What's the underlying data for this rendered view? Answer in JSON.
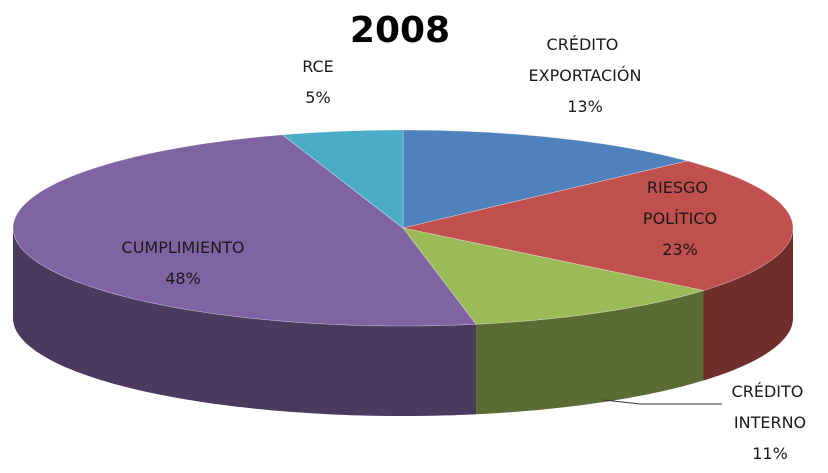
{
  "chart_data": {
    "type": "pie3d",
    "title": "2008",
    "categories": [
      "CRÉDITO EXPORTACIÓN",
      "RIESGO POLÍTICO",
      "CRÉDITO INTERNO",
      "CUMPLIMIENTO",
      "RCE"
    ],
    "values": [
      13,
      23,
      11,
      48,
      5
    ],
    "value_labels": [
      "13%",
      "23%",
      "11%",
      "48%",
      "5%"
    ],
    "colors": [
      "#4f81bd",
      "#c0504d",
      "#9bbb59",
      "#8064a2",
      "#4bacc6"
    ]
  }
}
